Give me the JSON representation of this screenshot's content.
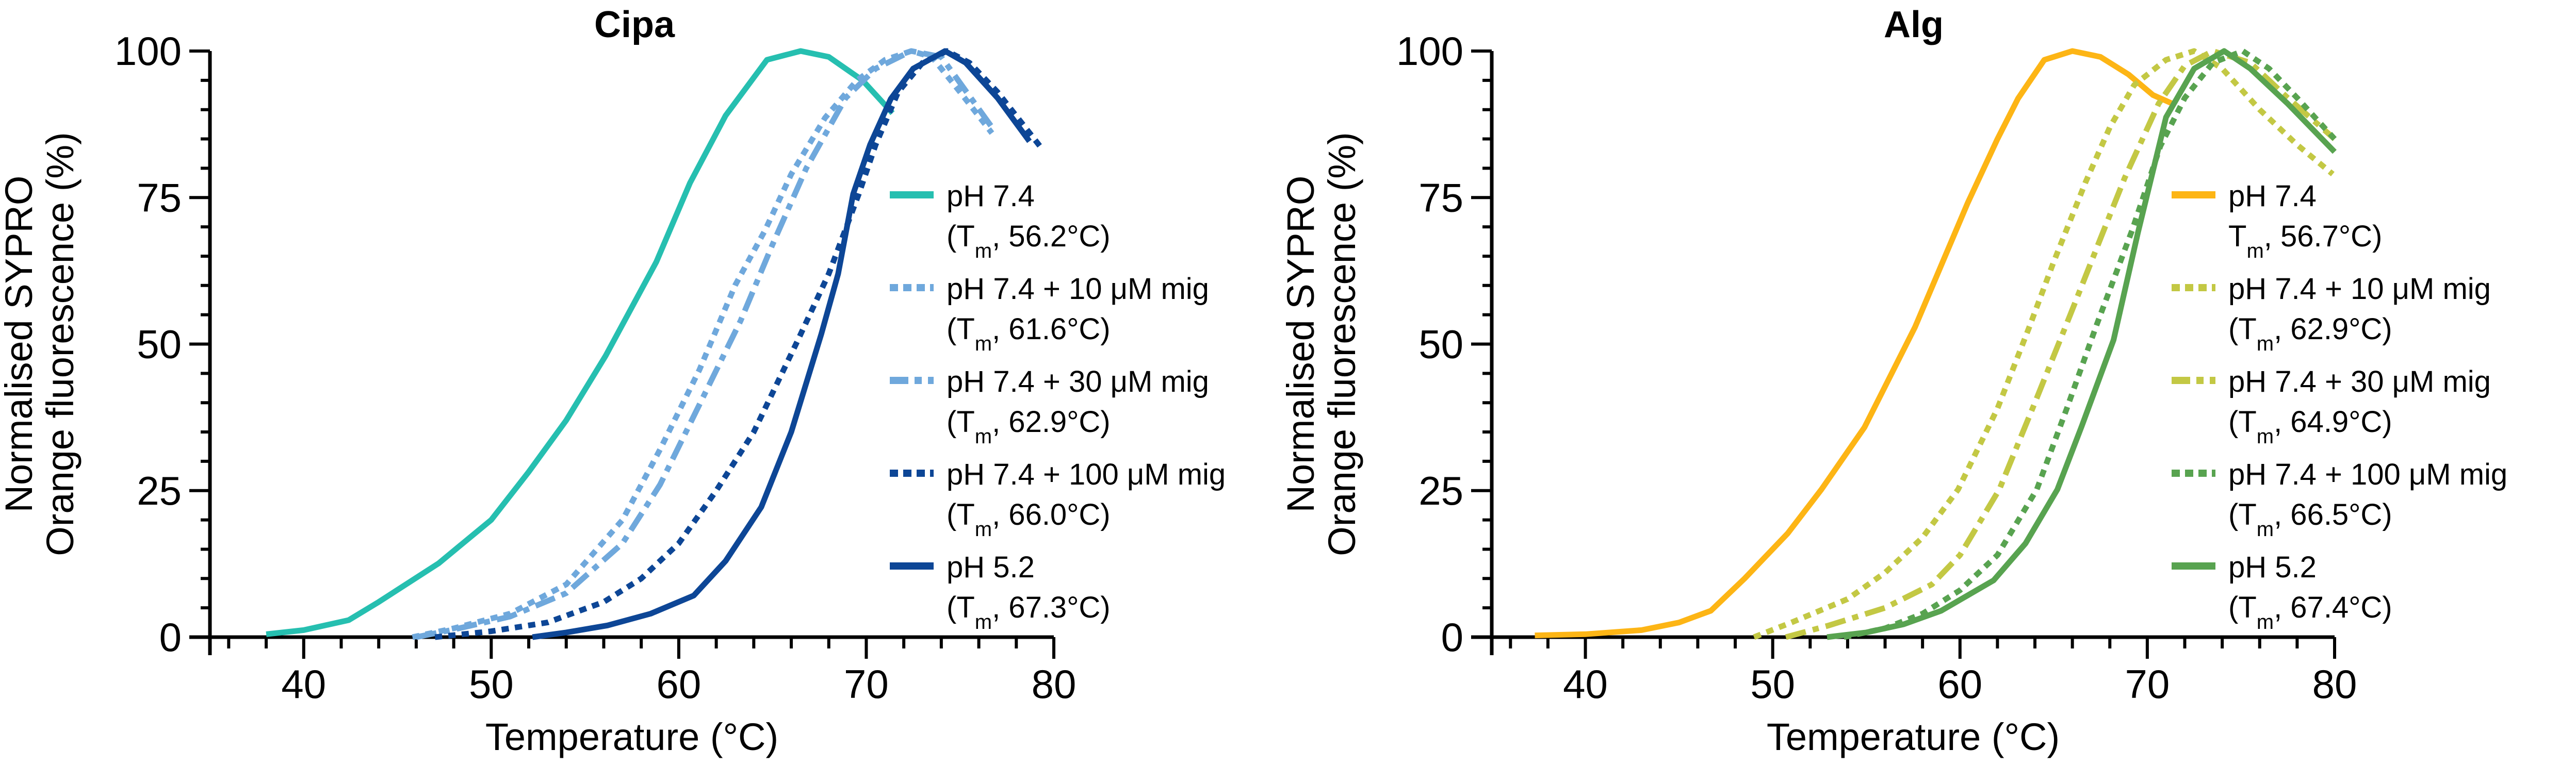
{
  "chart_data": [
    {
      "type": "line",
      "title": "Cipa",
      "xlabel": "Temperature (°C)",
      "ylabel_line1": "Normalised SYPRO",
      "ylabel_line2": "Orange fluorescence (%)",
      "xlim": [
        35,
        80
      ],
      "ylim": [
        0,
        100
      ],
      "x_ticks": [
        40,
        50,
        60,
        70,
        80
      ],
      "x_minor_step": 2,
      "y_ticks": [
        0,
        25,
        50,
        75,
        100
      ],
      "y_minor_step": 5,
      "grid": false,
      "legend_position": "center-right",
      "series": [
        {
          "name": "pH 7.4",
          "tm_label": "(T",
          "tm_value": ", 56.2°C)",
          "color": "#26BFB0",
          "style": "solid",
          "points": [
            [
              38.0,
              0.5
            ],
            [
              40,
              1.2
            ],
            [
              42.4,
              2.9
            ],
            [
              44,
              6
            ],
            [
              47.2,
              12.6
            ],
            [
              50,
              20
            ],
            [
              52.0,
              28.2
            ],
            [
              54,
              37
            ],
            [
              56.1,
              48
            ],
            [
              58.8,
              64
            ],
            [
              60.6,
              77.5
            ],
            [
              62.5,
              89
            ],
            [
              64.7,
              98.5
            ],
            [
              66.5,
              100
            ],
            [
              68,
              99
            ],
            [
              69.8,
              95
            ],
            [
              71.4,
              89.4
            ]
          ]
        },
        {
          "name": "pH 7.4 + 10 μM mig",
          "tm_label": "(T",
          "tm_value": ", 61.6°C)",
          "color": "#6FA8DC",
          "style": "dotted",
          "points": [
            [
              45.8,
              0
            ],
            [
              48,
              1.5
            ],
            [
              51,
              4
            ],
            [
              54,
              9
            ],
            [
              57,
              20
            ],
            [
              59,
              32
            ],
            [
              61.1,
              45.6
            ],
            [
              63,
              60
            ],
            [
              64.6,
              69.4
            ],
            [
              66,
              79
            ],
            [
              67.8,
              88.6
            ],
            [
              69.5,
              95
            ],
            [
              71,
              98.5
            ],
            [
              72.4,
              100
            ],
            [
              73.5,
              99
            ],
            [
              75,
              93
            ],
            [
              76.7,
              86
            ]
          ]
        },
        {
          "name": "pH 7.4 + 30 μM mig",
          "tm_label": "(T",
          "tm_value": ", 62.9°C)",
          "color": "#6FA8DC",
          "style": "dashdot",
          "points": [
            [
              46,
              0
            ],
            [
              48,
              1.3
            ],
            [
              51,
              3.5
            ],
            [
              54,
              7.5
            ],
            [
              57,
              16
            ],
            [
              59,
              26
            ],
            [
              61,
              39
            ],
            [
              63.3,
              54
            ],
            [
              65,
              67
            ],
            [
              66.8,
              80
            ],
            [
              68.9,
              92
            ],
            [
              70.5,
              97
            ],
            [
              72.4,
              100
            ],
            [
              74,
              99
            ],
            [
              76.7,
              87
            ]
          ]
        },
        {
          "name": "pH 7.4 + 100 μM mig",
          "tm_label": "(T",
          "tm_value": ", 66.0°C)",
          "color": "#0D4696",
          "style": "dotted",
          "points": [
            [
              47,
              0
            ],
            [
              50,
              1
            ],
            [
              53,
              2.5
            ],
            [
              56,
              6
            ],
            [
              58,
              10
            ],
            [
              60,
              16
            ],
            [
              62,
              25
            ],
            [
              64,
              35
            ],
            [
              66.4,
              51
            ],
            [
              68,
              62
            ],
            [
              69.6,
              75.6
            ],
            [
              70.5,
              84
            ],
            [
              71.7,
              93
            ],
            [
              73,
              98
            ],
            [
              74.3,
              100
            ],
            [
              75.5,
              98
            ],
            [
              77,
              93
            ],
            [
              79.4,
              83.2
            ]
          ]
        },
        {
          "name": "pH 5.2",
          "tm_label": "(T",
          "tm_value": ", 67.3°C)",
          "color": "#0D4696",
          "style": "solid",
          "points": [
            [
              52.2,
              0
            ],
            [
              54,
              0.8
            ],
            [
              56.2,
              2.0
            ],
            [
              58.5,
              4
            ],
            [
              60.8,
              7.1
            ],
            [
              62.5,
              13
            ],
            [
              64.4,
              22.2
            ],
            [
              66,
              35
            ],
            [
              67.6,
              51.7
            ],
            [
              68.5,
              62
            ],
            [
              69.3,
              75.6
            ],
            [
              70.2,
              84
            ],
            [
              71.3,
              91.8
            ],
            [
              72.5,
              97
            ],
            [
              74.2,
              100
            ],
            [
              75.3,
              98
            ],
            [
              77,
              92
            ],
            [
              78.7,
              84.6
            ]
          ]
        }
      ]
    },
    {
      "type": "line",
      "title": "Alg",
      "xlabel": "Temperature (°C)",
      "ylabel_line1": "Normalised SYPRO",
      "ylabel_line2": "Orange fluorescence (%)",
      "xlim": [
        35,
        80
      ],
      "ylim": [
        0,
        100
      ],
      "x_ticks": [
        40,
        50,
        60,
        70,
        80
      ],
      "x_minor_step": 2,
      "y_ticks": [
        0,
        25,
        50,
        75,
        100
      ],
      "y_minor_step": 5,
      "grid": false,
      "legend_position": "center-right",
      "series": [
        {
          "name": "pH 7.4",
          "tm_label": "T",
          "tm_value": ", 56.7°C)",
          "color": "#FDB515",
          "style": "solid",
          "points": [
            [
              37.3,
              0.3
            ],
            [
              40,
              0.5
            ],
            [
              43,
              1.2
            ],
            [
              45,
              2.5
            ],
            [
              46.7,
              4.5
            ],
            [
              48.5,
              10
            ],
            [
              50.8,
              17.7
            ],
            [
              52.6,
              25.2
            ],
            [
              54.9,
              35.8
            ],
            [
              57.6,
              52.9
            ],
            [
              60.4,
              74
            ],
            [
              62,
              85
            ],
            [
              63.1,
              91.9
            ],
            [
              64.5,
              98.5
            ],
            [
              66.0,
              100
            ],
            [
              67.5,
              99
            ],
            [
              69,
              96
            ],
            [
              70.3,
              92.5
            ],
            [
              71.5,
              90.8
            ]
          ]
        },
        {
          "name": "pH 7.4 + 10 μM mig",
          "tm_label": "(T",
          "tm_value": ", 62.9°C)",
          "color": "#C3C844",
          "style": "dotted",
          "points": [
            [
              49.0,
              0
            ],
            [
              51,
              2.5
            ],
            [
              54,
              6.5
            ],
            [
              56,
              11
            ],
            [
              58,
              17
            ],
            [
              59.9,
              25.2
            ],
            [
              62,
              39
            ],
            [
              63.7,
              52.9
            ],
            [
              65,
              64
            ],
            [
              66.7,
              77.6
            ],
            [
              68,
              87
            ],
            [
              69.3,
              94.2
            ],
            [
              71,
              98.5
            ],
            [
              72.5,
              100
            ],
            [
              74,
              97
            ],
            [
              76,
              90
            ],
            [
              78,
              84
            ],
            [
              79.9,
              79
            ]
          ]
        },
        {
          "name": "pH 7.4 + 30 μM mig",
          "tm_label": "(T",
          "tm_value": ", 64.9°C)",
          "color": "#C3C844",
          "style": "dashdot",
          "points": [
            [
              50.7,
              0
            ],
            [
              53,
              2
            ],
            [
              56,
              5
            ],
            [
              58.5,
              9
            ],
            [
              60,
              14
            ],
            [
              62.1,
              25.2
            ],
            [
              64,
              40
            ],
            [
              65.9,
              55.1
            ],
            [
              67.5,
              68
            ],
            [
              68.8,
              78.4
            ],
            [
              70.6,
              91
            ],
            [
              72,
              97.5
            ],
            [
              73.5,
              100
            ],
            [
              75.5,
              98
            ],
            [
              77.5,
              92
            ],
            [
              80,
              85
            ]
          ]
        },
        {
          "name": "pH 7.4 + 100 μM mig",
          "tm_label": "(T",
          "tm_value": ", 66.5°C)",
          "color": "#58A350",
          "style": "dotted",
          "points": [
            [
              53.8,
              0
            ],
            [
              56,
              1.5
            ],
            [
              58,
              4
            ],
            [
              60,
              8
            ],
            [
              62,
              14
            ],
            [
              64.1,
              25.2
            ],
            [
              65.7,
              39
            ],
            [
              67.3,
              53.3
            ],
            [
              69.2,
              69.5
            ],
            [
              70.7,
              83.8
            ],
            [
              72,
              92
            ],
            [
              73.5,
              98
            ],
            [
              75.1,
              100
            ],
            [
              76.5,
              97
            ],
            [
              78,
              92
            ],
            [
              80,
              85
            ]
          ]
        },
        {
          "name": "pH 5.2",
          "tm_label": "(T",
          "tm_value": ", 67.4°C)",
          "color": "#58A350",
          "style": "solid",
          "points": [
            [
              52.9,
              0
            ],
            [
              55,
              0.8
            ],
            [
              57,
              2.2
            ],
            [
              59,
              4.5
            ],
            [
              61.8,
              9.7
            ],
            [
              63.5,
              16
            ],
            [
              65.2,
              25.2
            ],
            [
              66.5,
              36
            ],
            [
              68.2,
              50.7
            ],
            [
              69.5,
              69
            ],
            [
              71.0,
              88.7
            ],
            [
              72.5,
              97
            ],
            [
              74.1,
              100
            ],
            [
              75.5,
              97
            ],
            [
              77.5,
              91
            ],
            [
              80,
              82.8
            ]
          ]
        }
      ]
    }
  ],
  "legend_subscript": "m"
}
